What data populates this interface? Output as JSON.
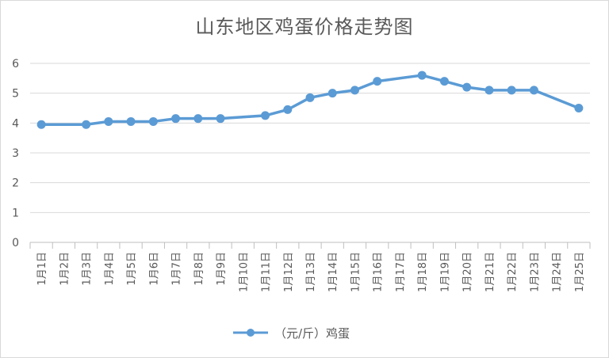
{
  "chart_data": {
    "type": "line",
    "title": "山东地区鸡蛋价格走势图",
    "xlabel": "",
    "ylabel": "",
    "ylim": [
      0,
      6
    ],
    "yticks": [
      "0",
      "1",
      "2",
      "3",
      "4",
      "5",
      "6"
    ],
    "grid": true,
    "legend_position": "bottom",
    "categories": [
      "1月1日",
      "1月2日",
      "1月3日",
      "1月4日",
      "1月5日",
      "1月6日",
      "1月7日",
      "1月8日",
      "1月9日",
      "1月10日",
      "1月11日",
      "1月12日",
      "1月13日",
      "1月14日",
      "1月15日",
      "1月16日",
      "1月17日",
      "1月18日",
      "1月19日",
      "1月20日",
      "1月21日",
      "1月22日",
      "1月23日",
      "1月24日",
      "1月25日"
    ],
    "series": [
      {
        "name": "（元/斤）鸡蛋",
        "color": "#5b9bd5",
        "values": [
          3.95,
          null,
          3.95,
          4.05,
          4.05,
          4.05,
          4.15,
          4.15,
          4.15,
          null,
          4.25,
          4.45,
          4.85,
          5.0,
          5.1,
          5.4,
          null,
          5.6,
          5.4,
          5.2,
          5.1,
          5.1,
          5.1,
          null,
          4.5
        ]
      }
    ]
  }
}
